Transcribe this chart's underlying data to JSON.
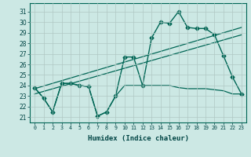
{
  "xlabel": "Humidex (Indice chaleur)",
  "background_color": "#cce8e4",
  "grid_color": "#b0c8c4",
  "line_color": "#006655",
  "x_ticks": [
    0,
    1,
    2,
    3,
    4,
    5,
    6,
    7,
    8,
    9,
    10,
    11,
    12,
    13,
    14,
    15,
    16,
    17,
    18,
    19,
    20,
    21,
    22,
    23
  ],
  "y_ticks": [
    21,
    22,
    23,
    24,
    25,
    26,
    27,
    28,
    29,
    30,
    31
  ],
  "ylim": [
    20.5,
    31.8
  ],
  "xlim": [
    -0.5,
    23.5
  ],
  "series": [
    {
      "x": [
        0,
        1,
        2,
        3,
        4,
        5,
        6,
        7,
        8,
        9,
        10,
        11,
        12,
        13,
        14,
        15,
        16,
        17,
        18,
        19,
        20,
        21,
        22,
        23
      ],
      "y": [
        23.8,
        22.8,
        21.5,
        24.2,
        24.2,
        24.0,
        23.9,
        21.1,
        21.5,
        23.0,
        26.7,
        26.7,
        24.0,
        28.5,
        30.0,
        29.9,
        31.0,
        29.5,
        29.4,
        29.4,
        28.8,
        26.8,
        24.8,
        23.2
      ],
      "marker": "D",
      "markersize": 2.5,
      "linewidth": 1.0
    },
    {
      "x": [
        0,
        1,
        2,
        3,
        4,
        5,
        6,
        7,
        8,
        9,
        10,
        11,
        12,
        13,
        14,
        15,
        16,
        17,
        18,
        19,
        20,
        21,
        22,
        23
      ],
      "y": [
        23.8,
        22.8,
        21.5,
        24.2,
        24.2,
        24.0,
        23.9,
        21.1,
        21.5,
        23.0,
        24.0,
        24.0,
        24.0,
        24.0,
        24.0,
        24.0,
        23.8,
        23.7,
        23.7,
        23.7,
        23.6,
        23.5,
        23.2,
        23.2
      ],
      "marker": null,
      "markersize": 0,
      "linewidth": 0.9
    },
    {
      "x": [
        0,
        23
      ],
      "y": [
        23.2,
        28.8
      ],
      "marker": null,
      "markersize": 0,
      "linewidth": 0.9
    },
    {
      "x": [
        0,
        23
      ],
      "y": [
        23.7,
        29.5
      ],
      "marker": null,
      "markersize": 0,
      "linewidth": 0.9
    }
  ]
}
